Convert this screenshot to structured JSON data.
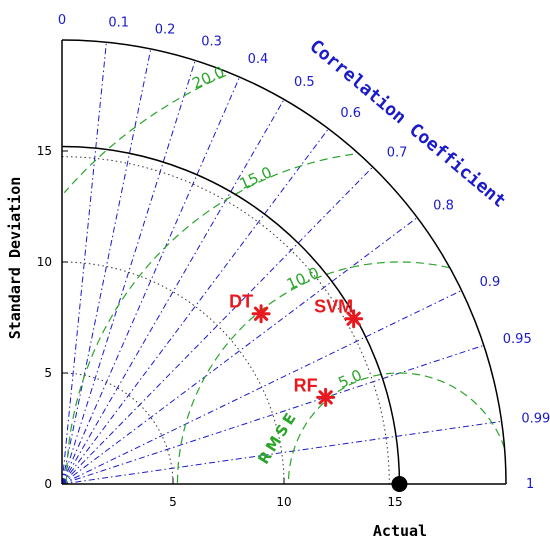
{
  "chart_data": {
    "type": "taylor-diagram",
    "title": "",
    "ylabel": "Standard Deviation",
    "xlabel": "Actual",
    "correlation_title": "Correlation Coefficient",
    "rmse_title": "RMSE",
    "std_max": 20,
    "std_ticks": [
      0,
      5,
      10,
      15
    ],
    "std_tick_labels": [
      "0",
      "5",
      "10",
      "15"
    ],
    "correlation_ticks": [
      0,
      0.1,
      0.2,
      0.3,
      0.4,
      0.5,
      0.6,
      0.7,
      0.8,
      0.9,
      0.95,
      0.99,
      1
    ],
    "correlation_tick_labels": [
      "0",
      "0.1",
      "0.2",
      "0.3",
      "0.4",
      "0.5",
      "0.6",
      "0.7",
      "0.8",
      "0.9",
      "0.95",
      "0.99",
      "1"
    ],
    "rmse_levels": [
      5,
      10,
      15,
      20
    ],
    "rmse_labels": [
      "5.0",
      "10.0",
      "15.0",
      "20.0"
    ],
    "reference": {
      "name": "Actual",
      "std": 15.2
    },
    "models": [
      {
        "name": "DT",
        "std": 11.8,
        "correlation": 0.76
      },
      {
        "name": "SVM",
        "std": 15.1,
        "correlation": 0.87
      },
      {
        "name": "RF",
        "std": 12.5,
        "correlation": 0.95
      }
    ],
    "colors": {
      "axes": "#000000",
      "correlation": "#1a1acc",
      "rmse": "#2aa52a",
      "models": "#e8191e",
      "std_dotted": "#333333"
    }
  }
}
